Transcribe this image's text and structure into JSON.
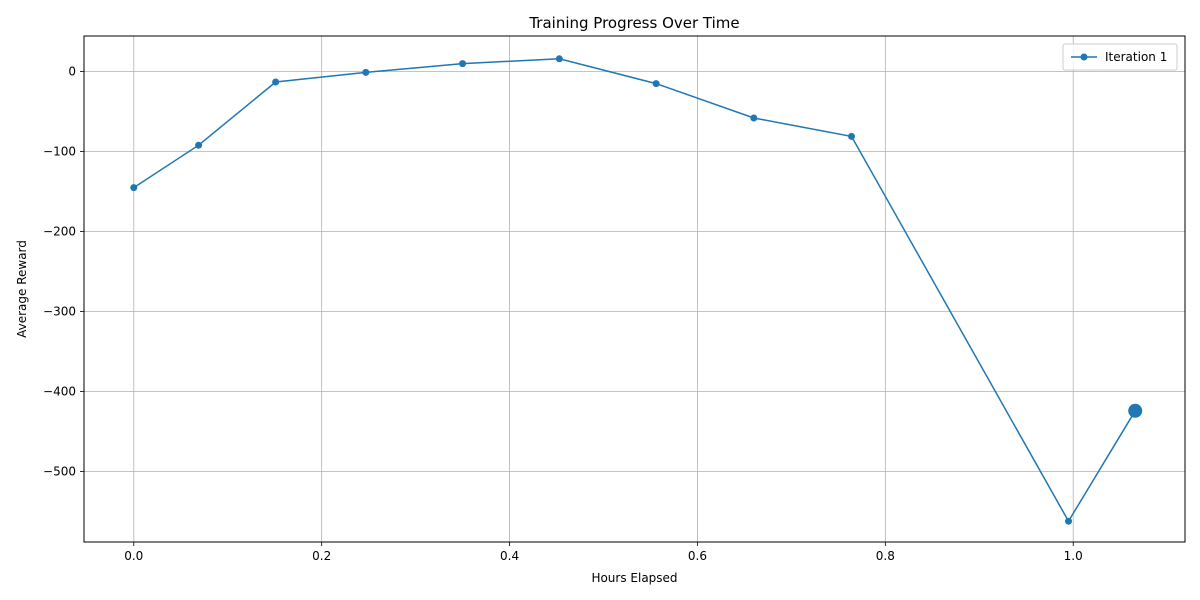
{
  "chart_data": {
    "type": "line",
    "title": "Training Progress Over Time",
    "xlabel": "Hours Elapsed",
    "ylabel": "Average Reward",
    "xlim": [
      -0.053,
      1.119
    ],
    "ylim": [
      -588,
      44.5
    ],
    "xticks": [
      0.0,
      0.2,
      0.4,
      0.6,
      0.8,
      1.0
    ],
    "xtick_labels": [
      "0.0",
      "0.2",
      "0.4",
      "0.6",
      "0.8",
      "1.0"
    ],
    "yticks": [
      0,
      -100,
      -200,
      -300,
      -400,
      -500
    ],
    "ytick_labels": [
      "0",
      "−100",
      "−200",
      "−300",
      "−400",
      "−500"
    ],
    "grid": true,
    "legend_position": "upper right",
    "series": [
      {
        "name": "Iteration 1",
        "color": "#1f77b4",
        "marker": "circle",
        "x": [
          0.0,
          0.069,
          0.151,
          0.247,
          0.35,
          0.453,
          0.556,
          0.66,
          0.764,
          0.995,
          1.066
        ],
        "y": [
          -145,
          -92,
          -13,
          -1,
          10,
          16,
          -15,
          -58,
          -81,
          -562,
          -424
        ]
      }
    ],
    "highlight_last_point": true
  }
}
